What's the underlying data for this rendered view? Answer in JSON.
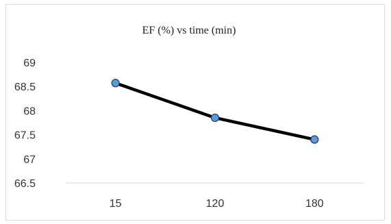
{
  "chart_data": {
    "type": "line",
    "title": "EF (%) vs time (min)",
    "xlabel": "",
    "ylabel": "",
    "categories": [
      "15",
      "120",
      "180"
    ],
    "series": [
      {
        "values": [
          68.57,
          67.85,
          67.4
        ],
        "line_color": "#000000",
        "marker_color": "#5b9bd5",
        "marker_edge_color": "#1f3864"
      }
    ],
    "ylim": [
      66.5,
      69
    ],
    "yticks": [
      "69",
      "68.5",
      "68",
      "67.5",
      "67",
      "66.5"
    ],
    "grid": false,
    "legend": "none"
  }
}
